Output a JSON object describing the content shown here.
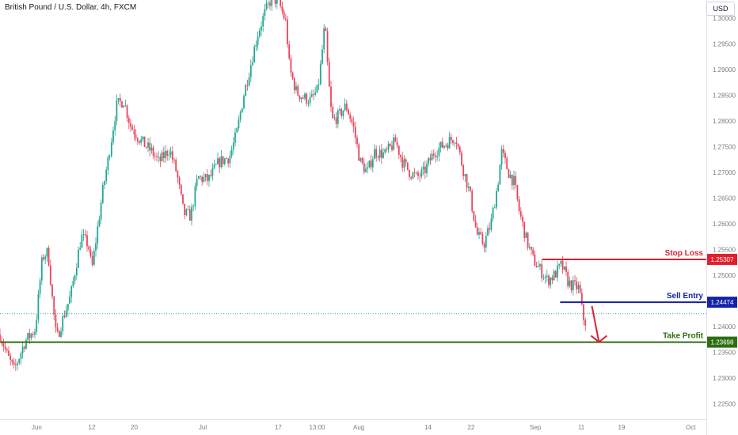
{
  "chart_title": "British Pound / U.S. Dollar, 4h, FXCM",
  "currency": "USD",
  "chart_data": {
    "type": "candlestick",
    "symbol": "British Pound / U.S. Dollar",
    "interval": "4h",
    "source": "FXCM",
    "x_tick_labels": [
      "Jun",
      "12",
      "20",
      "Jul",
      "17",
      "13:00",
      "Aug",
      "14",
      "22",
      "Sep",
      "11",
      "19",
      "Oct"
    ],
    "y_tick_labels": [
      "1.30000",
      "1.29500",
      "1.29000",
      "1.28500",
      "1.28000",
      "1.27500",
      "1.27000",
      "1.26500",
      "1.26000",
      "1.25500",
      "1.25000",
      "1.24000",
      "1.23500",
      "1.23000",
      "1.22500"
    ],
    "ylim": [
      1.222,
      1.3035
    ],
    "close_path": [
      [
        0,
        1.2385
      ],
      [
        0.01,
        1.2345
      ],
      [
        0.02,
        1.2315
      ],
      [
        0.035,
        1.237
      ],
      [
        0.05,
        1.2395
      ],
      [
        0.06,
        1.2535
      ],
      [
        0.068,
        1.2545
      ],
      [
        0.075,
        1.244
      ],
      [
        0.08,
        1.2375
      ],
      [
        0.09,
        1.242
      ],
      [
        0.1,
        1.246
      ],
      [
        0.115,
        1.2575
      ],
      [
        0.125,
        1.256
      ],
      [
        0.13,
        1.251
      ],
      [
        0.145,
        1.266
      ],
      [
        0.155,
        1.274
      ],
      [
        0.165,
        1.283
      ],
      [
        0.175,
        1.284
      ],
      [
        0.185,
        1.279
      ],
      [
        0.2,
        1.276
      ],
      [
        0.215,
        1.274
      ],
      [
        0.225,
        1.272
      ],
      [
        0.24,
        1.2745
      ],
      [
        0.25,
        1.27
      ],
      [
        0.26,
        1.262
      ],
      [
        0.27,
        1.2615
      ],
      [
        0.28,
        1.269
      ],
      [
        0.295,
        1.2685
      ],
      [
        0.31,
        1.272
      ],
      [
        0.325,
        1.273
      ],
      [
        0.335,
        1.2775
      ],
      [
        0.345,
        1.285
      ],
      [
        0.355,
        1.291
      ],
      [
        0.365,
        1.297
      ],
      [
        0.375,
        1.301
      ],
      [
        0.385,
        1.304
      ],
      [
        0.395,
        1.303
      ],
      [
        0.405,
        1.299
      ],
      [
        0.41,
        1.29
      ],
      [
        0.42,
        1.2855
      ],
      [
        0.43,
        1.2845
      ],
      [
        0.44,
        1.284
      ],
      [
        0.45,
        1.286
      ],
      [
        0.455,
        1.292
      ],
      [
        0.46,
        1.299
      ],
      [
        0.465,
        1.288
      ],
      [
        0.47,
        1.28
      ],
      [
        0.48,
        1.281
      ],
      [
        0.49,
        1.283
      ],
      [
        0.5,
        1.279
      ],
      [
        0.51,
        1.272
      ],
      [
        0.52,
        1.27
      ],
      [
        0.53,
        1.274
      ],
      [
        0.545,
        1.2735
      ],
      [
        0.56,
        1.276
      ],
      [
        0.57,
        1.272
      ],
      [
        0.58,
        1.27
      ],
      [
        0.59,
        1.269
      ],
      [
        0.6,
        1.27
      ],
      [
        0.615,
        1.274
      ],
      [
        0.625,
        1.275
      ],
      [
        0.635,
        1.276
      ],
      [
        0.645,
        1.277
      ],
      [
        0.655,
        1.271
      ],
      [
        0.665,
        1.266
      ],
      [
        0.675,
        1.258
      ],
      [
        0.685,
        1.256
      ],
      [
        0.695,
        1.26
      ],
      [
        0.705,
        1.268
      ],
      [
        0.71,
        1.274
      ],
      [
        0.72,
        1.27
      ],
      [
        0.728,
        1.268
      ],
      [
        0.735,
        1.2625
      ],
      [
        0.745,
        1.257
      ],
      [
        0.755,
        1.253
      ],
      [
        0.765,
        1.251
      ],
      [
        0.775,
        1.249
      ],
      [
        0.785,
        1.25
      ],
      [
        0.795,
        1.252
      ],
      [
        0.805,
        1.2485
      ],
      [
        0.81,
        1.248
      ],
      [
        0.82,
        1.2475
      ],
      [
        0.825,
        1.242
      ],
      [
        0.83,
        1.2405
      ]
    ],
    "current_price": 1.2425,
    "levels": [
      {
        "name": "Stop Loss",
        "price": 1.25307,
        "label": "1.25307",
        "color": "#e0202d",
        "start_frac": 0.768
      },
      {
        "name": "Sell Entry",
        "price": 1.24474,
        "label": "1.24474",
        "color": "#1422a8",
        "start_frac": 0.793
      },
      {
        "name": "Take Profit",
        "price": 1.23698,
        "label": "1.23698",
        "color": "#2e6e13",
        "start_frac": 0.0
      }
    ],
    "arrow": {
      "from": [
        0.838,
        1.244
      ],
      "to": [
        0.848,
        1.237
      ],
      "color": "#e0202d"
    },
    "colors": {
      "up": "#22a791",
      "down": "#e8455a",
      "axis_text": "#787b86"
    }
  }
}
